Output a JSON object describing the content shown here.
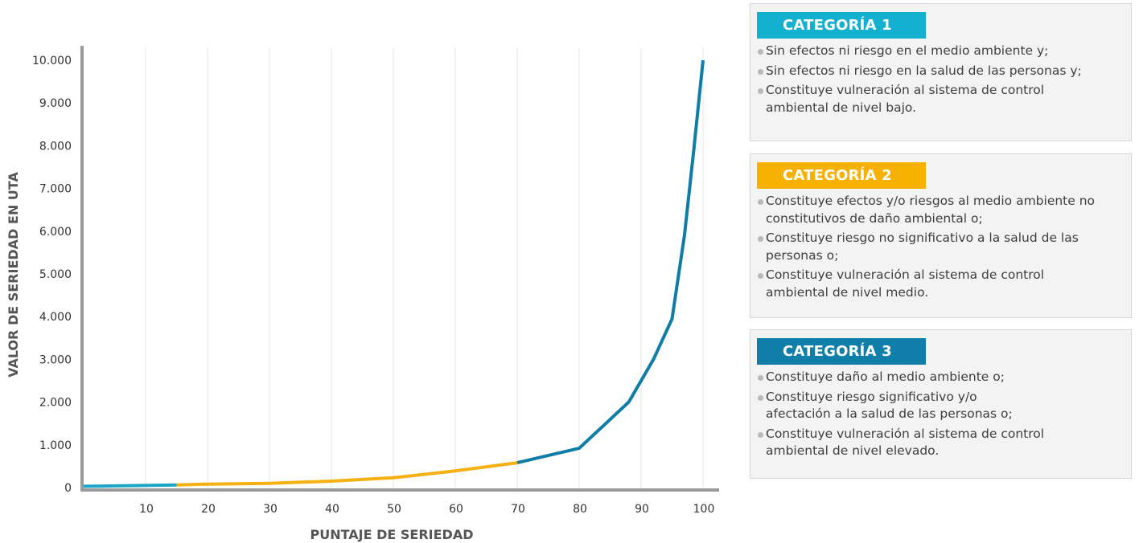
{
  "chart_data": {
    "type": "line",
    "xlabel": "PUNTAJE DE SERIEDAD",
    "ylabel": "VALOR DE SERIEDAD EN UTA",
    "xlim": [
      0,
      100
    ],
    "ylim": [
      0,
      10000
    ],
    "x_ticks": [
      10,
      20,
      30,
      40,
      50,
      60,
      70,
      80,
      90,
      100
    ],
    "x_tick_labels": [
      "10",
      "20",
      "30",
      "40",
      "50",
      "60",
      "70",
      "80",
      "90",
      "100"
    ],
    "y_ticks": [
      0,
      1000,
      2000,
      3000,
      4000,
      5000,
      6000,
      7000,
      8000,
      9000,
      10000
    ],
    "y_tick_labels": [
      "0",
      "1.000",
      "2.000",
      "3.000",
      "4.000",
      "5.000",
      "6.000",
      "7.000",
      "8.000",
      "9.000",
      "10.000"
    ],
    "grid": "vertical",
    "series": [
      {
        "color": "#1aa5c7",
        "x": [
          0,
          15
        ],
        "y": [
          30,
          60
        ]
      },
      {
        "color": "#f5b114",
        "x": [
          15,
          20,
          30,
          40,
          50,
          60,
          70
        ],
        "y": [
          60,
          80,
          100,
          150,
          230,
          390,
          580
        ]
      },
      {
        "color": "#0f7da5",
        "x": [
          70,
          80,
          88,
          92,
          95,
          97,
          98.5,
          100
        ],
        "y": [
          580,
          920,
          2000,
          3000,
          3950,
          5900,
          7900,
          10000
        ]
      }
    ]
  },
  "categories": [
    {
      "title": "CATEGORÍA 1",
      "color": "#13b0d0",
      "items": [
        "Sin efectos ni riesgo en el medio ambiente y;",
        "Sin efectos ni riesgo en la salud de las personas y;",
        "Constituye vulneración al sistema de control ambiental de nivel bajo."
      ]
    },
    {
      "title": "CATEGORÍA 2",
      "color": "#f7b100",
      "items": [
        "Constituye efectos y/o riesgos al medio ambiente no constitutivos de daño ambiental o;",
        "Constituye riesgo no significativo a la salud de las personas o;",
        "Constituye vulneración al sistema de control ambiental de nivel medio."
      ]
    },
    {
      "title": "CATEGORÍA 3",
      "color": "#0f7ea8",
      "items": [
        "Constituye daño al medio ambiente o;",
        "Constituye riesgo significativo y/o afectación a la salud de las personas o;",
        "Constituye vulneración al sistema de control ambiental de nivel elevado."
      ]
    }
  ]
}
